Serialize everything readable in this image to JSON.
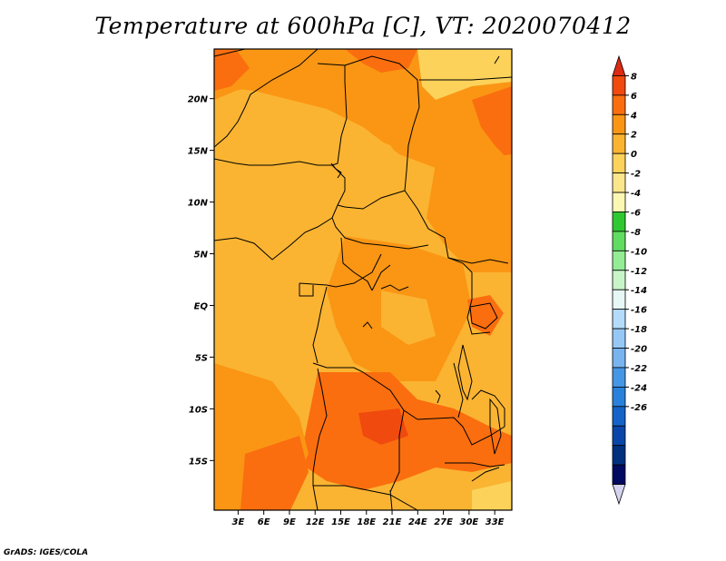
{
  "title": "Temperature at 600hPa [C], VT: 2020070412",
  "credit": "GrADS: IGES/COLA",
  "map": {
    "lat_ticks": [
      {
        "label": "20N",
        "lat": 20
      },
      {
        "label": "15N",
        "lat": 15
      },
      {
        "label": "10N",
        "lat": 10
      },
      {
        "label": "5N",
        "lat": 5
      },
      {
        "label": "EQ",
        "lat": 0
      },
      {
        "label": "5S",
        "lat": -5
      },
      {
        "label": "10S",
        "lat": -10
      },
      {
        "label": "15S",
        "lat": -15
      }
    ],
    "lon_ticks": [
      {
        "label": "3E",
        "lon": 3
      },
      {
        "label": "6E",
        "lon": 6
      },
      {
        "label": "9E",
        "lon": 9
      },
      {
        "label": "12E",
        "lon": 12
      },
      {
        "label": "15E",
        "lon": 15
      },
      {
        "label": "18E",
        "lon": 18
      },
      {
        "label": "21E",
        "lon": 21
      },
      {
        "label": "24E",
        "lon": 24
      },
      {
        "label": "27E",
        "lon": 27
      },
      {
        "label": "30E",
        "lon": 30
      },
      {
        "label": "33E",
        "lon": 33
      }
    ],
    "lon_range": [
      0.2,
      35
    ],
    "lat_range": [
      -19.8,
      24.8
    ]
  },
  "colorbar": {
    "levels": [
      {
        "label": "8",
        "value": 8
      },
      {
        "label": "6",
        "value": 6
      },
      {
        "label": "4",
        "value": 4
      },
      {
        "label": "2",
        "value": 2
      },
      {
        "label": "0",
        "value": 0
      },
      {
        "label": "-2",
        "value": -2
      },
      {
        "label": "-4",
        "value": -4
      },
      {
        "label": "-6",
        "value": -6
      },
      {
        "label": "-8",
        "value": -8
      },
      {
        "label": "-10",
        "value": -10
      },
      {
        "label": "-12",
        "value": -12
      },
      {
        "label": "-14",
        "value": -14
      },
      {
        "label": "-16",
        "value": -16
      },
      {
        "label": "-18",
        "value": -18
      },
      {
        "label": "-20",
        "value": -20
      },
      {
        "label": "-22",
        "value": -22
      },
      {
        "label": "-24",
        "value": -24
      },
      {
        "label": "-26",
        "value": -26
      }
    ],
    "colors": [
      "#dc2a14",
      "#f04a0f",
      "#fa6e0f",
      "#fa9614",
      "#fab432",
      "#fcd25a",
      "#fce68c",
      "#fcf8b4",
      "#30c830",
      "#60dc60",
      "#94ec94",
      "#c8f5c8",
      "#e6f7f5",
      "#b4dcfa",
      "#96c8f5",
      "#78b4f0",
      "#4696e6",
      "#2882dc",
      "#1464c8",
      "#0a46aa",
      "#003080",
      "#000a60",
      "#d4d4f0"
    ]
  }
}
